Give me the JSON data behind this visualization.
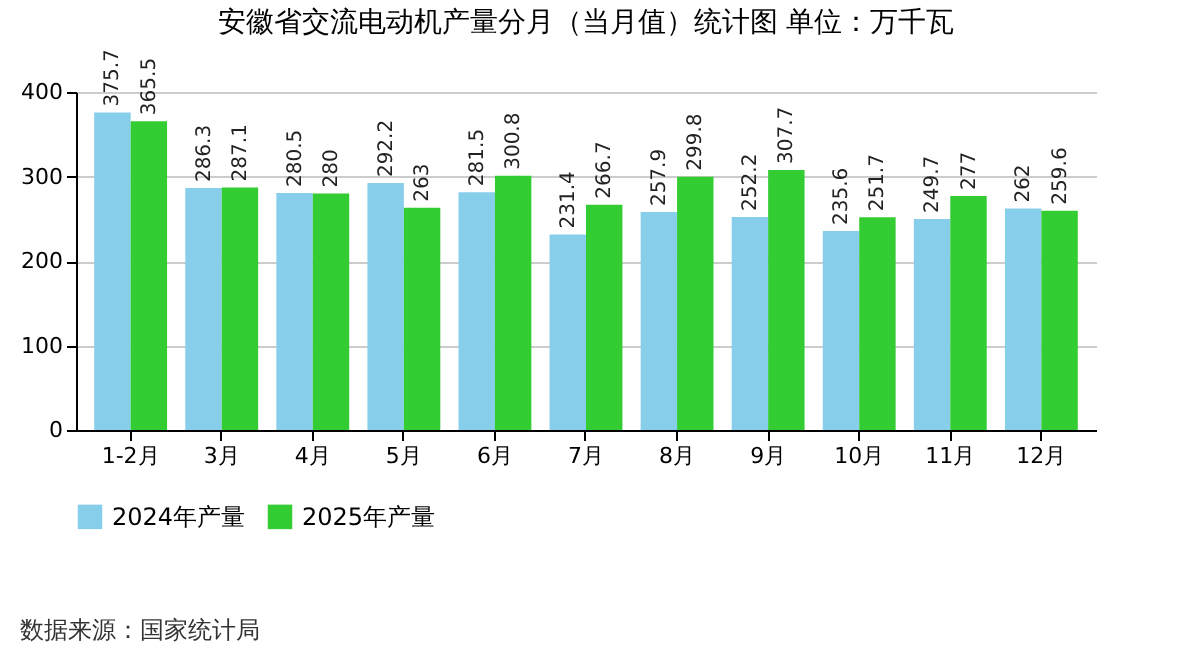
{
  "chart_data": {
    "type": "bar",
    "title": "安徽省交流电动机产量分月（当月值）统计图 单位：万千瓦",
    "categories": [
      "1-2月",
      "3月",
      "4月",
      "5月",
      "6月",
      "7月",
      "8月",
      "9月",
      "10月",
      "11月",
      "12月"
    ],
    "series": [
      {
        "name": "2024年产量",
        "color": "#87ceeb",
        "values": [
          375.7,
          286.3,
          280.5,
          292.2,
          281.5,
          231.4,
          257.9,
          252.2,
          235.6,
          249.7,
          262
        ]
      },
      {
        "name": "2025年产量",
        "color": "#33cc33",
        "values": [
          365.5,
          287.1,
          280,
          263,
          300.8,
          266.7,
          299.8,
          307.7,
          251.7,
          277,
          259.6
        ]
      }
    ],
    "ylim": [
      0,
      400
    ],
    "yticks": [
      0,
      100,
      200,
      300,
      400
    ],
    "grid": "y",
    "legend": "bottom",
    "data_labels": true,
    "annotations": [
      "数据来源：国家统计局"
    ]
  }
}
